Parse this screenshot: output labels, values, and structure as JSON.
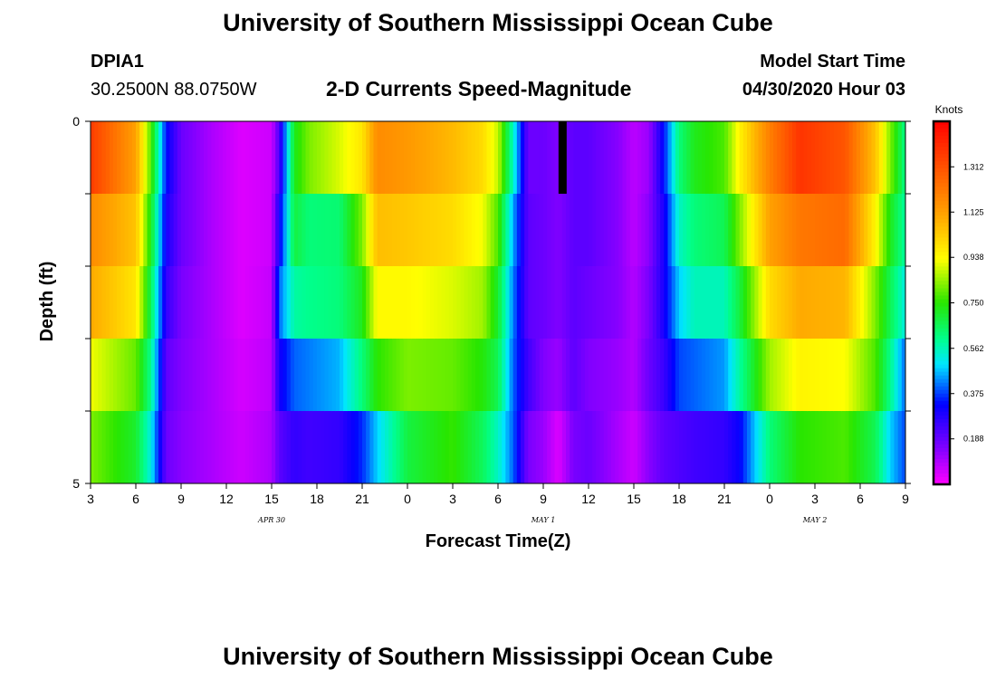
{
  "header": {
    "title_top": "University of Southern Mississippi Ocean Cube",
    "title_bottom": "University of Southern Mississippi Ocean Cube",
    "station_id": "DPIA1",
    "station_coords": "30.2500N 88.0750W",
    "chart_title": "2-D Currents Speed-Magnitude",
    "model_start_label": "Model Start Time",
    "model_start_value": "04/30/2020 Hour 03"
  },
  "chart_data": {
    "type": "heatmap",
    "title": "2-D Currents Speed-Magnitude",
    "xlabel": "Forecast Time(Z)",
    "ylabel": "Depth (ft)",
    "ylim": [
      0,
      5
    ],
    "y_ticks": [
      "0",
      "5"
    ],
    "x_tick_labels": [
      "3",
      "6",
      "9",
      "12",
      "15",
      "18",
      "21",
      "0",
      "3",
      "6",
      "9",
      "12",
      "15",
      "18",
      "21",
      "0",
      "3",
      "6",
      "9"
    ],
    "date_labels": [
      {
        "text": "APR 30",
        "at_tick": 4
      },
      {
        "text": "MAY 1",
        "at_tick": 10
      },
      {
        "text": "MAY 2",
        "at_tick": 16
      }
    ],
    "colorbar": {
      "unit": "Knots",
      "min": 0.0,
      "max": 1.5,
      "tick_labels": [
        "1.312",
        "1.125",
        "0.938",
        "0.750",
        "0.562",
        "0.375",
        "0.188"
      ],
      "tick_values": [
        1.312,
        1.125,
        0.938,
        0.75,
        0.562,
        0.375,
        0.188
      ]
    },
    "x_hours_start": 3,
    "x_hours_end": 57,
    "depth_layers": 5,
    "missing_cells": [
      {
        "hour": 34.25,
        "layer": 0
      }
    ],
    "speed_knots_by_hour": [
      [
        3,
        1.36,
        1.17,
        1.1,
        0.92,
        0.82
      ],
      [
        6,
        1.12,
        1.05,
        0.98,
        0.8,
        0.7
      ],
      [
        7,
        0.78,
        0.72,
        0.66,
        0.6,
        0.52
      ],
      [
        8,
        0.34,
        0.3,
        0.26,
        0.2,
        0.18
      ],
      [
        9,
        0.18,
        0.18,
        0.16,
        0.15,
        0.14
      ],
      [
        11,
        0.1,
        0.1,
        0.1,
        0.1,
        0.1
      ],
      [
        13,
        0.04,
        0.04,
        0.04,
        0.05,
        0.06
      ],
      [
        15,
        0.06,
        0.06,
        0.07,
        0.08,
        0.1
      ],
      [
        15.5,
        0.22,
        0.3,
        0.4,
        0.3,
        0.2
      ],
      [
        16.5,
        0.72,
        0.68,
        0.58,
        0.4,
        0.26
      ],
      [
        17.5,
        0.82,
        0.62,
        0.6,
        0.42,
        0.24
      ],
      [
        19.5,
        0.9,
        0.63,
        0.62,
        0.46,
        0.26
      ],
      [
        21,
        0.98,
        0.82,
        0.72,
        0.62,
        0.36
      ],
      [
        22,
        1.17,
        1.06,
        0.94,
        0.75,
        0.48
      ],
      [
        24,
        1.14,
        1.04,
        0.94,
        0.82,
        0.68
      ],
      [
        27,
        1.07,
        1.0,
        0.9,
        0.8,
        0.76
      ],
      [
        29,
        1.0,
        0.92,
        0.85,
        0.74,
        0.65
      ],
      [
        30,
        0.88,
        0.78,
        0.7,
        0.66,
        0.55
      ],
      [
        31,
        0.55,
        0.45,
        0.42,
        0.4,
        0.4
      ],
      [
        32,
        0.18,
        0.2,
        0.2,
        0.24,
        0.16
      ],
      [
        33,
        0.18,
        0.18,
        0.18,
        0.15,
        0.12
      ],
      [
        34,
        0.15,
        0.15,
        0.15,
        0.12,
        0.04
      ],
      [
        35,
        0.2,
        0.2,
        0.2,
        0.2,
        0.16
      ],
      [
        36,
        0.2,
        0.2,
        0.18,
        0.15,
        0.18
      ],
      [
        38,
        0.14,
        0.14,
        0.14,
        0.12,
        0.1
      ],
      [
        39,
        0.08,
        0.08,
        0.09,
        0.09,
        0.06
      ],
      [
        40,
        0.12,
        0.14,
        0.16,
        0.18,
        0.14
      ],
      [
        41,
        0.34,
        0.3,
        0.3,
        0.25,
        0.2
      ],
      [
        42,
        0.62,
        0.55,
        0.48,
        0.38,
        0.22
      ],
      [
        43,
        0.72,
        0.62,
        0.56,
        0.4,
        0.24
      ],
      [
        45,
        0.78,
        0.66,
        0.56,
        0.44,
        0.26
      ],
      [
        46,
        0.95,
        0.82,
        0.68,
        0.58,
        0.32
      ],
      [
        48,
        1.2,
        1.12,
        1.0,
        0.85,
        0.62
      ],
      [
        50,
        1.38,
        1.22,
        1.1,
        0.95,
        0.75
      ],
      [
        53,
        1.3,
        1.25,
        1.08,
        0.93,
        0.78
      ],
      [
        55,
        1.05,
        0.95,
        0.82,
        0.78,
        0.66
      ],
      [
        56,
        0.82,
        0.72,
        0.66,
        0.6,
        0.48
      ],
      [
        57,
        0.6,
        0.58,
        0.52,
        0.4,
        0.38
      ]
    ]
  }
}
